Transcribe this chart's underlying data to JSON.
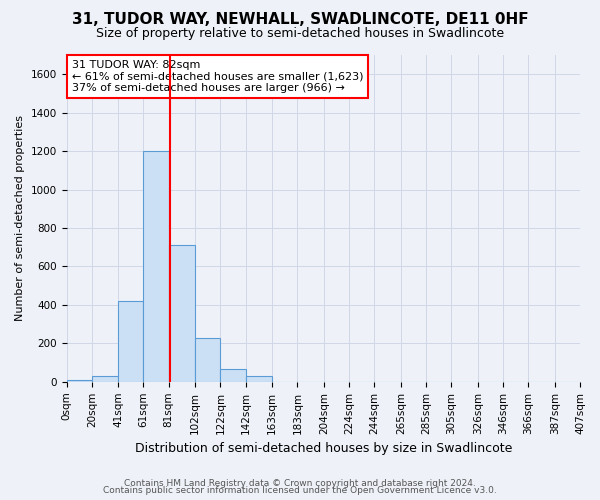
{
  "title1": "31, TUDOR WAY, NEWHALL, SWADLINCOTE, DE11 0HF",
  "title2": "Size of property relative to semi-detached houses in Swadlincote",
  "xlabel": "Distribution of semi-detached houses by size in Swadlincote",
  "ylabel": "Number of semi-detached properties",
  "footer1": "Contains HM Land Registry data © Crown copyright and database right 2024.",
  "footer2": "Contains public sector information licensed under the Open Government Licence v3.0.",
  "property_size": 82,
  "annotation_line1": "31 TUDOR WAY: 82sqm",
  "annotation_line2": "← 61% of semi-detached houses are smaller (1,623)",
  "annotation_line3": "37% of semi-detached houses are larger (966) →",
  "bin_edges": [
    0,
    20,
    41,
    61,
    81,
    102,
    122,
    142,
    163,
    183,
    204,
    224,
    244,
    265,
    285,
    305,
    326,
    346,
    366,
    387,
    407
  ],
  "bar_heights": [
    10,
    30,
    420,
    1200,
    710,
    230,
    65,
    30,
    0,
    0,
    0,
    0,
    0,
    0,
    0,
    0,
    0,
    0,
    0,
    0
  ],
  "bar_color": "#cce0f5",
  "bar_edge_color": "#5b9bd5",
  "red_line_x": 82,
  "ylim": [
    0,
    1700
  ],
  "yticks": [
    0,
    200,
    400,
    600,
    800,
    1000,
    1200,
    1400,
    1600
  ],
  "grid_color": "#d0d8e8",
  "background_color": "#eef2f8",
  "plot_bg_color": "#eef2f8",
  "annotation_box_color": "white",
  "annotation_box_edge": "red",
  "title1_fontsize": 11,
  "title2_fontsize": 9,
  "xlabel_fontsize": 9,
  "ylabel_fontsize": 8,
  "tick_fontsize": 7.5,
  "annotation_fontsize": 8,
  "footer_fontsize": 6.5
}
